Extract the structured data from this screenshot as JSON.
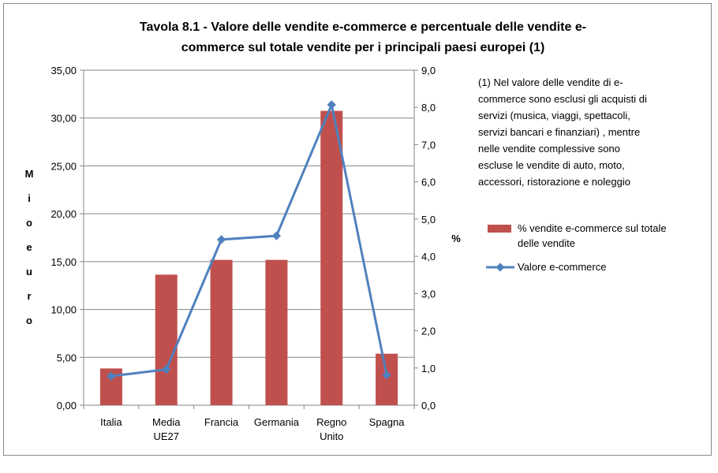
{
  "chart_data": {
    "type": "bar+line",
    "title": "Tavola 8.1 - Valore delle  vendite e-commerce e percentuale delle vendite e-commerce sul totale vendite per i principali paesi europei (1)",
    "title_lines": [
      "Tavola 8.1 - Valore delle  vendite e-commerce e percentuale delle vendite e-",
      "commerce sul totale vendite per i principali paesi europei (1)"
    ],
    "categories": [
      [
        "Italia"
      ],
      [
        "Media",
        "UE27"
      ],
      [
        "Francia"
      ],
      [
        "Germania"
      ],
      [
        "Regno",
        "Unito"
      ],
      [
        "Spagna"
      ]
    ],
    "ylabel_left": "Mio euro",
    "ylabel_right": "%",
    "ylim_left": [
      0,
      35
    ],
    "ylim_right": [
      0,
      9
    ],
    "yticks_left": [
      "0,00",
      "5,00",
      "10,00",
      "15,00",
      "20,00",
      "25,00",
      "30,00",
      "35,00"
    ],
    "yticks_right": [
      "0,0",
      "1,0",
      "2,0",
      "3,0",
      "4,0",
      "5,0",
      "6,0",
      "7,0",
      "8,0",
      "9,0"
    ],
    "grid": true,
    "series": [
      {
        "name": "% vendite e-commerce sul totale delle vendite",
        "name_lines": [
          "% vendite e-commerce sul totale",
          "delle vendite"
        ],
        "type": "bar",
        "axis": "left",
        "color": "#c0504d",
        "values": [
          3.84,
          13.64,
          15.18,
          15.18,
          30.75,
          5.38
        ]
      },
      {
        "name": "Valore e-commerce",
        "type": "line",
        "axis": "right",
        "color": "#4f81bd",
        "values": [
          0.78,
          0.96,
          4.45,
          4.55,
          8.07,
          0.81
        ]
      }
    ],
    "note_lines": [
      "(1) Nel valore delle vendite di e-",
      "commerce sono esclusi gli acquisti di",
      "servizi (musica, viaggi, spettacoli,",
      "servizi bancari e finanziari) , mentre",
      "nelle  vendite complessive sono",
      "escluse  le vendite di auto, moto,",
      "accessori, ristorazione  e noleggio"
    ]
  }
}
